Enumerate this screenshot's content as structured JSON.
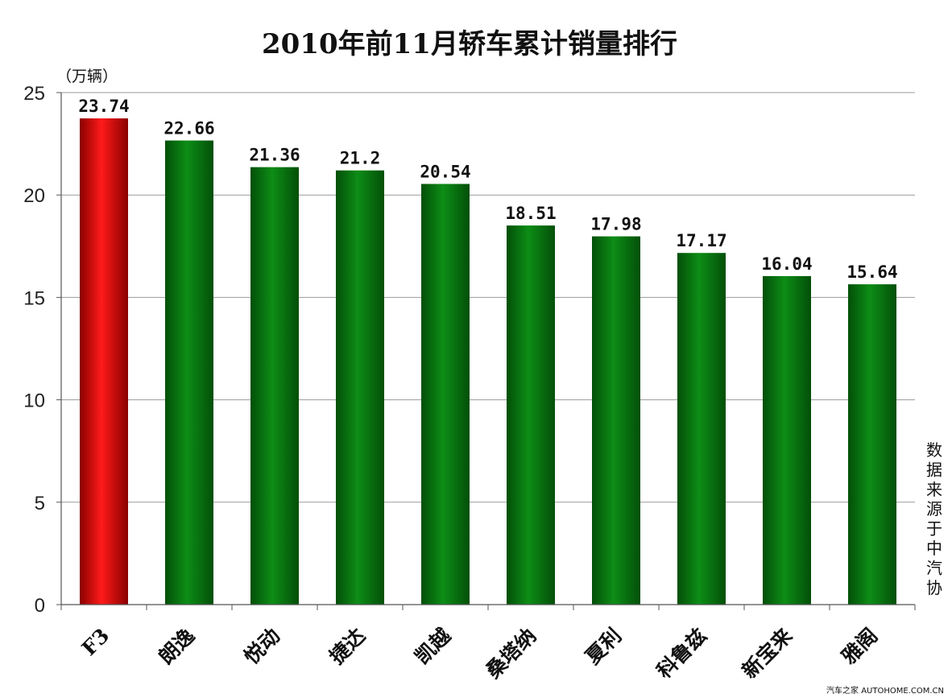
{
  "chart_data": {
    "type": "bar",
    "title": "2010年前11月轿车累计销量排行",
    "unit_label": "（万辆）",
    "categories": [
      "F3",
      "朗逸",
      "悦动",
      "捷达",
      "凯越",
      "桑塔纳",
      "夏利",
      "科鲁兹",
      "新宝来",
      "雅阁"
    ],
    "values": [
      23.74,
      22.66,
      21.36,
      21.2,
      20.54,
      18.51,
      17.98,
      17.17,
      16.04,
      15.64
    ],
    "value_labels": [
      "23.74",
      "22.66",
      "21.36",
      "21.2",
      "20.54",
      "18.51",
      "17.98",
      "17.17",
      "16.04",
      "15.64"
    ],
    "ylim": [
      0,
      25
    ],
    "yticks": [
      0,
      5,
      10,
      15,
      20,
      25
    ],
    "grid": true,
    "highlight_index": 0,
    "colors": {
      "highlight": "#e01010",
      "bar": "#0a8a12",
      "grid": "#9a9a9a",
      "axis": "#666666"
    },
    "source_note": "数据来源于中汽协"
  },
  "watermark": "汽车之家 AUTOHOME.COM.CN"
}
